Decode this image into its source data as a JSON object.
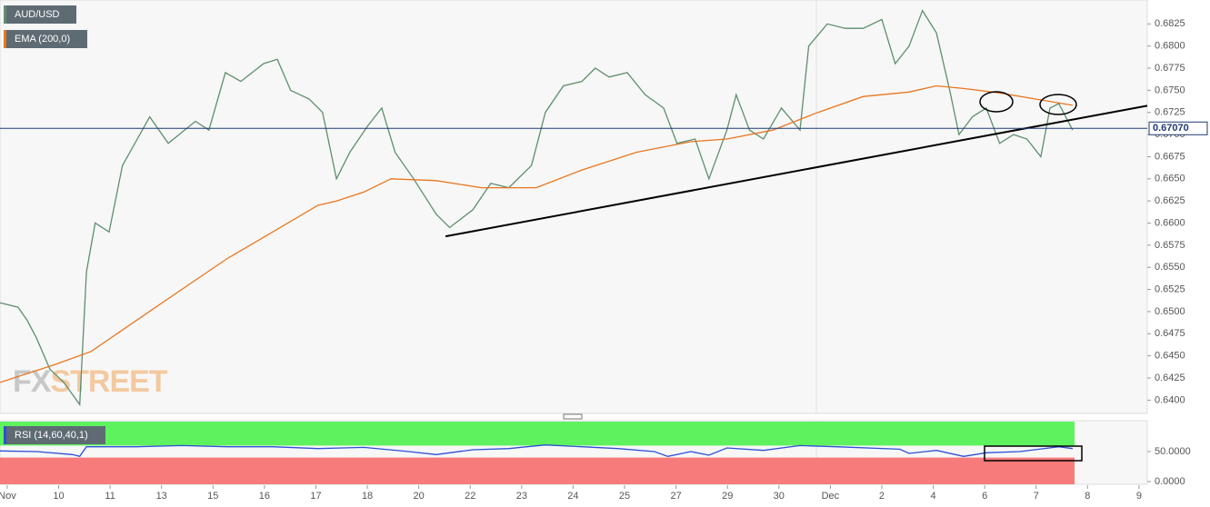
{
  "chart_data": {
    "type": "line",
    "series": [
      {
        "name": "AUD/USD",
        "color": "#5e8f6e",
        "x": [
          -0.14,
          0.21,
          0.39,
          0.57,
          0.83,
          1.1,
          1.41,
          1.54,
          1.71,
          1.98,
          2.24,
          2.77,
          3.13,
          3.66,
          3.92,
          4.24,
          4.54,
          4.98,
          5.25,
          5.51,
          5.87,
          6.13,
          6.4,
          6.66,
          7.01,
          7.28,
          7.54,
          7.9,
          8.34,
          8.6,
          9.05,
          9.4,
          9.75,
          10.19,
          10.46,
          10.81,
          11.17,
          11.43,
          11.7,
          12.05,
          12.4,
          12.76,
          13.02,
          13.37,
          13.64,
          13.99,
          14.17,
          14.43,
          14.7,
          15.05,
          15.41,
          15.58,
          15.94,
          16.29,
          16.64,
          17.0,
          17.26,
          17.53,
          17.79,
          18.06,
          18.32,
          18.5,
          18.76,
          19.03,
          19.29,
          19.56,
          19.82,
          20.09,
          20.27,
          20.44,
          20.71
        ],
        "values": [
          0.651,
          0.6505,
          0.649,
          0.647,
          0.6435,
          0.642,
          0.6395,
          0.6545,
          0.66,
          0.659,
          0.6665,
          0.672,
          0.669,
          0.6715,
          0.6705,
          0.677,
          0.676,
          0.678,
          0.6785,
          0.675,
          0.674,
          0.6725,
          0.665,
          0.668,
          0.671,
          0.673,
          0.668,
          0.665,
          0.661,
          0.6595,
          0.6615,
          0.6645,
          0.664,
          0.6665,
          0.6725,
          0.6755,
          0.676,
          0.6775,
          0.6765,
          0.677,
          0.6745,
          0.673,
          0.669,
          0.6695,
          0.665,
          0.6705,
          0.6745,
          0.6705,
          0.6695,
          0.673,
          0.6705,
          0.68,
          0.6825,
          0.682,
          0.682,
          0.683,
          0.678,
          0.68,
          0.684,
          0.6815,
          0.675,
          0.67,
          0.672,
          0.673,
          0.669,
          0.67,
          0.6695,
          0.6675,
          0.673,
          0.6735,
          0.6705
        ]
      },
      {
        "name": "EMA (200,0)",
        "color": "#e8761f",
        "x": [
          -0.14,
          0.92,
          1.63,
          2.51,
          3.39,
          4.28,
          5.16,
          6.04,
          6.4,
          6.93,
          7.46,
          8.34,
          9.22,
          10.28,
          11.17,
          12.23,
          13.29,
          13.99,
          14.88,
          15.76,
          16.64,
          17.53,
          18.06,
          18.59,
          19.29,
          20.0,
          20.71
        ],
        "values": [
          0.642,
          0.644,
          0.6455,
          0.649,
          0.6525,
          0.656,
          0.659,
          0.662,
          0.6625,
          0.6635,
          0.665,
          0.6648,
          0.664,
          0.664,
          0.666,
          0.668,
          0.6692,
          0.6695,
          0.6705,
          0.6725,
          0.6743,
          0.6748,
          0.6755,
          0.6752,
          0.6747,
          0.674,
          0.6733
        ]
      }
    ],
    "xlim": [
      -0.14,
      22.16
    ],
    "xticks": [
      {
        "value": 0,
        "label": "Nov"
      },
      {
        "value": 1,
        "label": "10"
      },
      {
        "value": 2,
        "label": "11"
      },
      {
        "value": 3,
        "label": "13"
      },
      {
        "value": 4,
        "label": "15"
      },
      {
        "value": 5,
        "label": "16"
      },
      {
        "value": 6,
        "label": "17"
      },
      {
        "value": 7,
        "label": "18"
      },
      {
        "value": 8,
        "label": "20"
      },
      {
        "value": 9,
        "label": "22"
      },
      {
        "value": 10,
        "label": "23"
      },
      {
        "value": 11,
        "label": "24"
      },
      {
        "value": 12,
        "label": "25"
      },
      {
        "value": 13,
        "label": "27"
      },
      {
        "value": 14,
        "label": "29"
      },
      {
        "value": 15,
        "label": "30"
      },
      {
        "value": 16,
        "label": "Dec"
      },
      {
        "value": 17,
        "label": "2"
      },
      {
        "value": 18,
        "label": "4"
      },
      {
        "value": 19,
        "label": "6"
      },
      {
        "value": 20,
        "label": "7"
      },
      {
        "value": 21,
        "label": "8"
      },
      {
        "value": 22,
        "label": "9"
      }
    ],
    "ylim": [
      0.6385,
      0.6852
    ],
    "yticks": [
      {
        "value": 0.64,
        "label": "0.6400"
      },
      {
        "value": 0.6425,
        "label": "0.6425"
      },
      {
        "value": 0.645,
        "label": "0.6450"
      },
      {
        "value": 0.6475,
        "label": "0.6475"
      },
      {
        "value": 0.65,
        "label": "0.6500"
      },
      {
        "value": 0.6525,
        "label": "0.6525"
      },
      {
        "value": 0.655,
        "label": "0.6550"
      },
      {
        "value": 0.6575,
        "label": "0.6575"
      },
      {
        "value": 0.66,
        "label": "0.6600"
      },
      {
        "value": 0.6625,
        "label": "0.6625"
      },
      {
        "value": 0.665,
        "label": "0.6650"
      },
      {
        "value": 0.6675,
        "label": "0.6675"
      },
      {
        "value": 0.67,
        "label": "0.6700"
      },
      {
        "value": 0.6725,
        "label": "0.6725"
      },
      {
        "value": 0.675,
        "label": "0.6750"
      },
      {
        "value": 0.6775,
        "label": "0.6775"
      },
      {
        "value": 0.68,
        "label": "0.6800"
      },
      {
        "value": 0.6825,
        "label": "0.6825"
      }
    ],
    "last_price": {
      "value": 0.6707,
      "label": "0.67070"
    },
    "trendline": {
      "x": [
        8.52,
        22.16
      ],
      "y": [
        0.6585,
        0.67326
      ]
    },
    "watermark": {
      "fx": "FX",
      "street": "STREET"
    },
    "rsi": {
      "type": "line",
      "name": "RSI (14,60,40,1)",
      "color": "#2d4fd6",
      "upper": 60,
      "lower": 40,
      "x": [
        -0.14,
        0.57,
        1.27,
        1.41,
        1.54,
        2.51,
        3.39,
        4.28,
        5.16,
        6.04,
        6.93,
        7.81,
        8.34,
        9.05,
        9.75,
        10.46,
        11.17,
        11.87,
        12.58,
        12.84,
        13.29,
        13.64,
        13.99,
        14.7,
        15.41,
        16.11,
        17.35,
        17.53,
        18.06,
        18.59,
        19.03,
        19.68,
        20.44,
        20.71
      ],
      "values": [
        51,
        50,
        45,
        42,
        58,
        58,
        60,
        58,
        58,
        55,
        57,
        50,
        45,
        53,
        55,
        61,
        58,
        55,
        50,
        42,
        50,
        44,
        56,
        52,
        60,
        58,
        54,
        47,
        52,
        42,
        48,
        50,
        58,
        55
      ],
      "ylim": [
        0,
        100
      ],
      "yticks": [
        {
          "value": 50,
          "label": "50.0000"
        },
        {
          "value": 0,
          "label": "0.0000"
        }
      ]
    }
  }
}
